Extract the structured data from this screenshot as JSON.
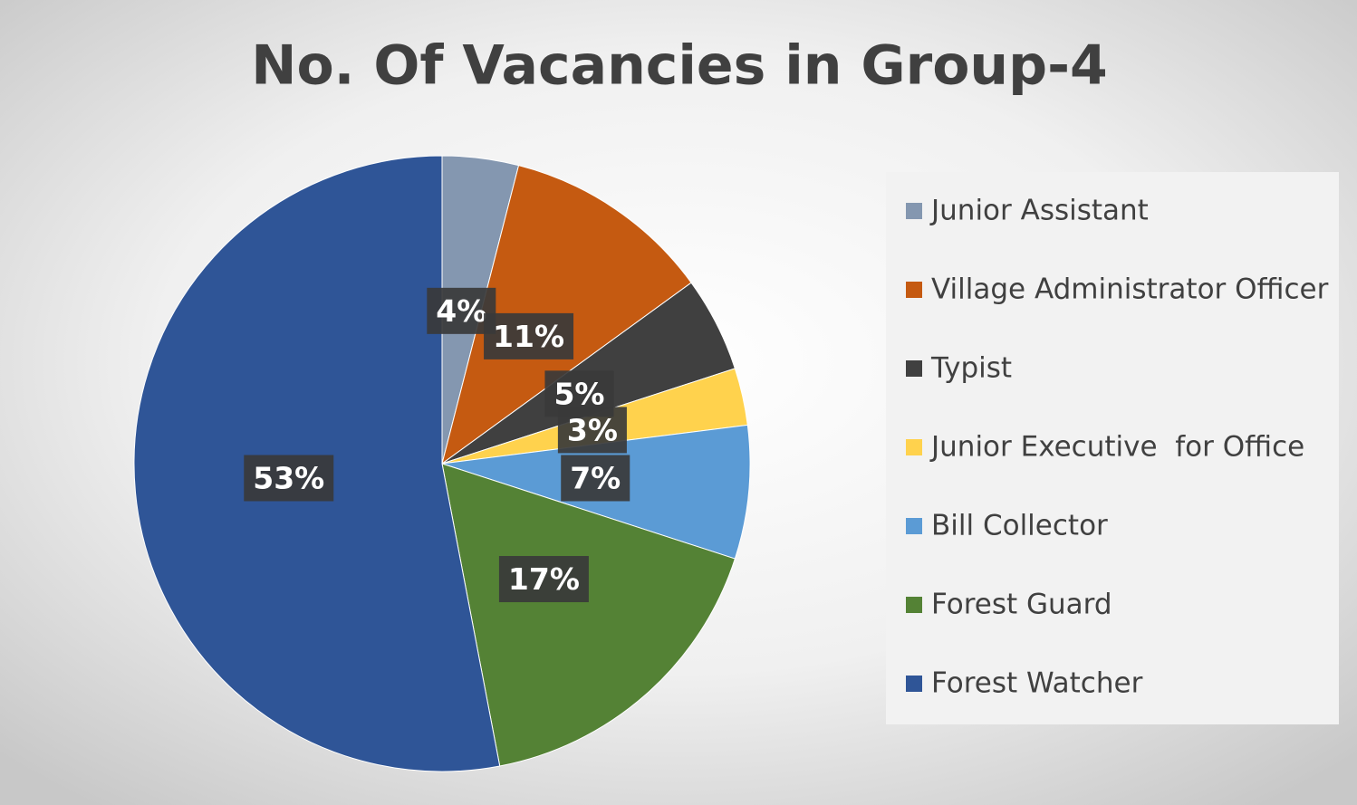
{
  "chart_data": {
    "type": "pie",
    "title": "No. Of Vacancies in Group-4",
    "categories": [
      "Junior Assistant",
      "Village Administrator Officer",
      "Typist",
      "Junior Executive  for Office",
      "Bill Collector",
      "Forest Guard",
      "Forest Watcher"
    ],
    "values": [
      4,
      11,
      5,
      3,
      7,
      17,
      53
    ],
    "value_labels": [
      "4%",
      "11%",
      "5%",
      "3%",
      "7%",
      "17%",
      "53%"
    ],
    "colors": [
      "#8497b0",
      "#c55a11",
      "#404040",
      "#ffd24d",
      "#5b9bd5",
      "#548235",
      "#2f5597"
    ],
    "legend": "right"
  }
}
